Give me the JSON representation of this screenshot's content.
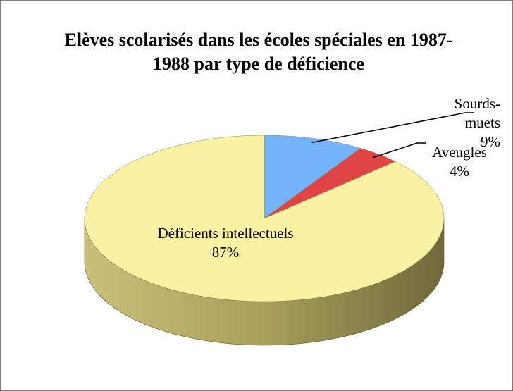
{
  "chart_data": {
    "type": "pie",
    "title": "Elèves scolarisés dans les écoles spéciales en 1987-1988 par type de déficience",
    "categories": [
      "Sourds-muets",
      "Aveugles",
      "Déficients intellectuels"
    ],
    "values": [
      9,
      4,
      87
    ],
    "value_labels": [
      "9%",
      "4%",
      "87%"
    ],
    "colors": [
      "#74b4fb",
      "#e04444",
      "#f8f2a2"
    ]
  }
}
